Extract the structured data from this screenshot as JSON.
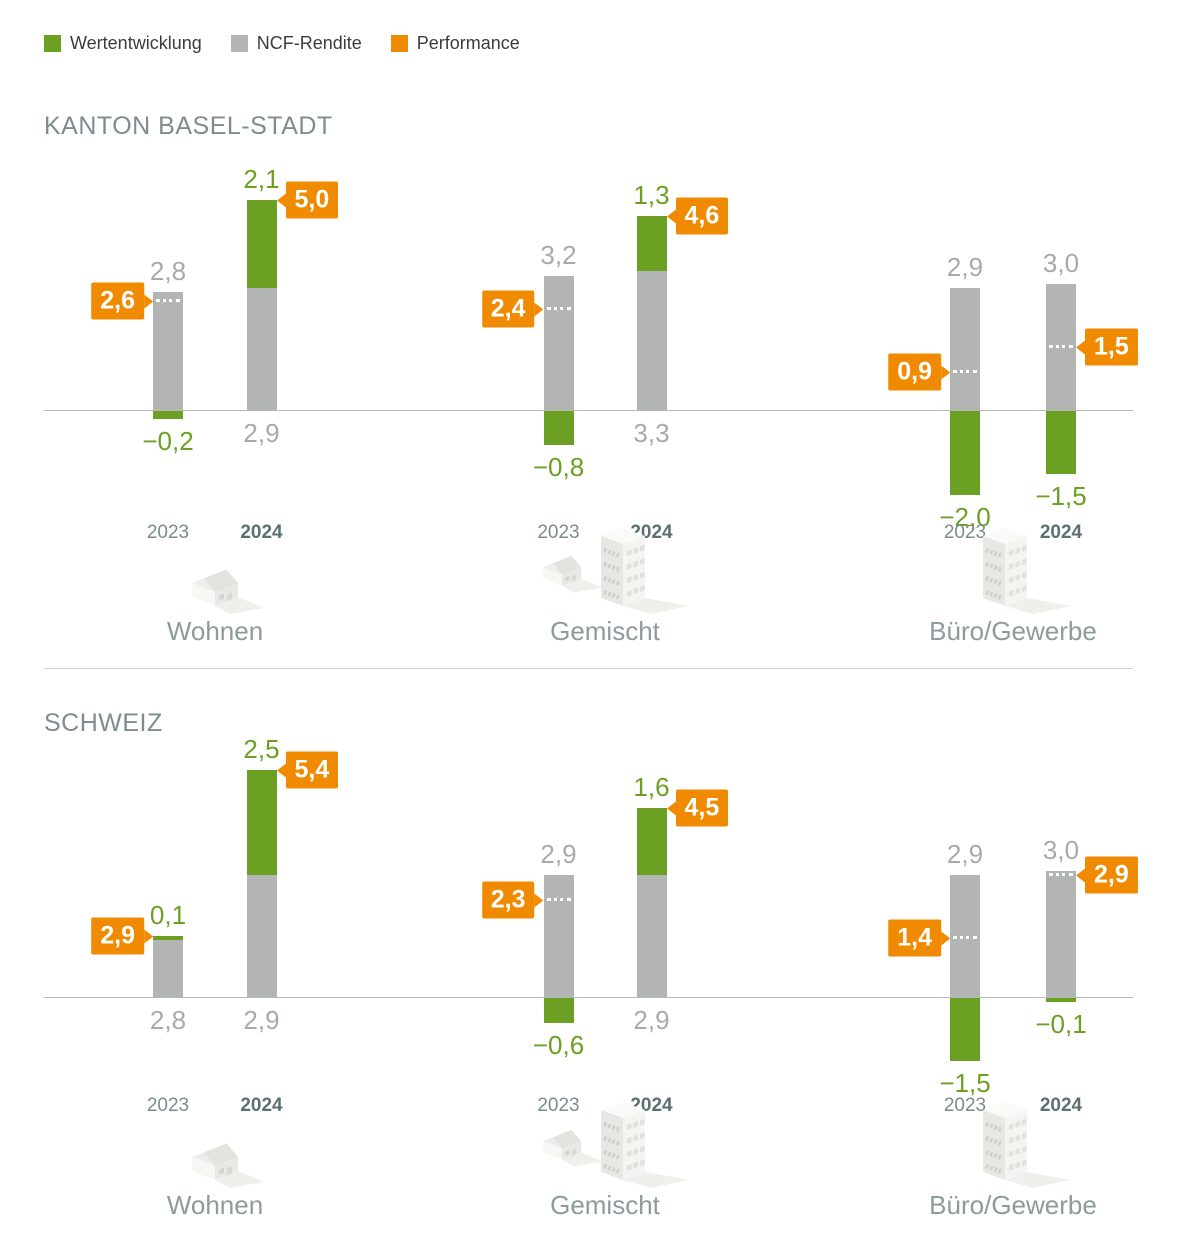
{
  "chart_data": {
    "type": "bar",
    "subtype": "stacked-columns-with-performance-markers",
    "legend": [
      {
        "id": "wertentwicklung",
        "label": "Wertentwicklung",
        "color": "#6ba023"
      },
      {
        "id": "ncf-rendite",
        "label": "NCF-Rendite",
        "color": "#b2b5b3"
      },
      {
        "id": "performance",
        "label": "Performance",
        "color": "#f08a00"
      }
    ],
    "years": [
      "2023",
      "2024"
    ],
    "sections": [
      {
        "id": "kanton-basel-stadt",
        "title": "KANTON BASEL-STADT",
        "groups": [
          {
            "id": "wohnen",
            "label": "Wohnen",
            "icon": "house-icon",
            "bars": [
              {
                "year": "2023",
                "ncf": 2.8,
                "ncf_label": "2,8",
                "wertentwicklung": -0.2,
                "wert_label": "−0,2",
                "performance": 2.6,
                "perf_label": "2,6",
                "perf_side": "left"
              },
              {
                "year": "2024",
                "ncf": 2.9,
                "ncf_label": "2,9",
                "wertentwicklung": 2.1,
                "wert_label": "2,1",
                "performance": 5.0,
                "perf_label": "5,0",
                "perf_side": "right"
              }
            ]
          },
          {
            "id": "gemischt",
            "label": "Gemischt",
            "icon": "house-building-icon",
            "bars": [
              {
                "year": "2023",
                "ncf": 3.2,
                "ncf_label": "3,2",
                "wertentwicklung": -0.8,
                "wert_label": "−0,8",
                "performance": 2.4,
                "perf_label": "2,4",
                "perf_side": "left"
              },
              {
                "year": "2024",
                "ncf": 3.3,
                "ncf_label": "3,3",
                "wertentwicklung": 1.3,
                "wert_label": "1,3",
                "performance": 4.6,
                "perf_label": "4,6",
                "perf_side": "right"
              }
            ]
          },
          {
            "id": "buero-gewerbe",
            "label": "Büro/Gewerbe",
            "icon": "building-icon",
            "bars": [
              {
                "year": "2023",
                "ncf": 2.9,
                "ncf_label": "2,9",
                "wertentwicklung": -2.0,
                "wert_label": "−2,0",
                "performance": 0.9,
                "perf_label": "0,9",
                "perf_side": "left"
              },
              {
                "year": "2024",
                "ncf": 3.0,
                "ncf_label": "3,0",
                "wertentwicklung": -1.5,
                "wert_label": "−1,5",
                "performance": 1.5,
                "perf_label": "1,5",
                "perf_side": "right"
              }
            ]
          }
        ]
      },
      {
        "id": "schweiz",
        "title": "SCHWEIZ",
        "groups": [
          {
            "id": "wohnen",
            "label": "Wohnen",
            "icon": "house-icon",
            "bars": [
              {
                "year": "2023",
                "ncf": 2.8,
                "ncf_label": "2,8",
                "wertentwicklung": 0.1,
                "wert_label": "0,1",
                "performance": 2.9,
                "perf_label": "2,9",
                "perf_side": "left"
              },
              {
                "year": "2024",
                "ncf": 2.9,
                "ncf_label": "2,9",
                "wertentwicklung": 2.5,
                "wert_label": "2,5",
                "performance": 5.4,
                "perf_label": "5,4",
                "perf_side": "right"
              }
            ]
          },
          {
            "id": "gemischt",
            "label": "Gemischt",
            "icon": "house-building-icon",
            "bars": [
              {
                "year": "2023",
                "ncf": 2.9,
                "ncf_label": "2,9",
                "wertentwicklung": -0.6,
                "wert_label": "−0,6",
                "performance": 2.3,
                "perf_label": "2,3",
                "perf_side": "left"
              },
              {
                "year": "2024",
                "ncf": 2.9,
                "ncf_label": "2,9",
                "wertentwicklung": 1.6,
                "wert_label": "1,6",
                "performance": 4.5,
                "perf_label": "4,5",
                "perf_side": "right"
              }
            ]
          },
          {
            "id": "buero-gewerbe",
            "label": "Büro/Gewerbe",
            "icon": "building-icon",
            "bars": [
              {
                "year": "2023",
                "ncf": 2.9,
                "ncf_label": "2,9",
                "wertentwicklung": -1.5,
                "wert_label": "−1,5",
                "performance": 1.4,
                "perf_label": "1,4",
                "perf_side": "left"
              },
              {
                "year": "2024",
                "ncf": 3.0,
                "ncf_label": "3,0",
                "wertentwicklung": -0.1,
                "wert_label": "−0,1",
                "performance": 2.9,
                "perf_label": "2,9",
                "perf_side": "right"
              }
            ]
          }
        ]
      }
    ]
  }
}
